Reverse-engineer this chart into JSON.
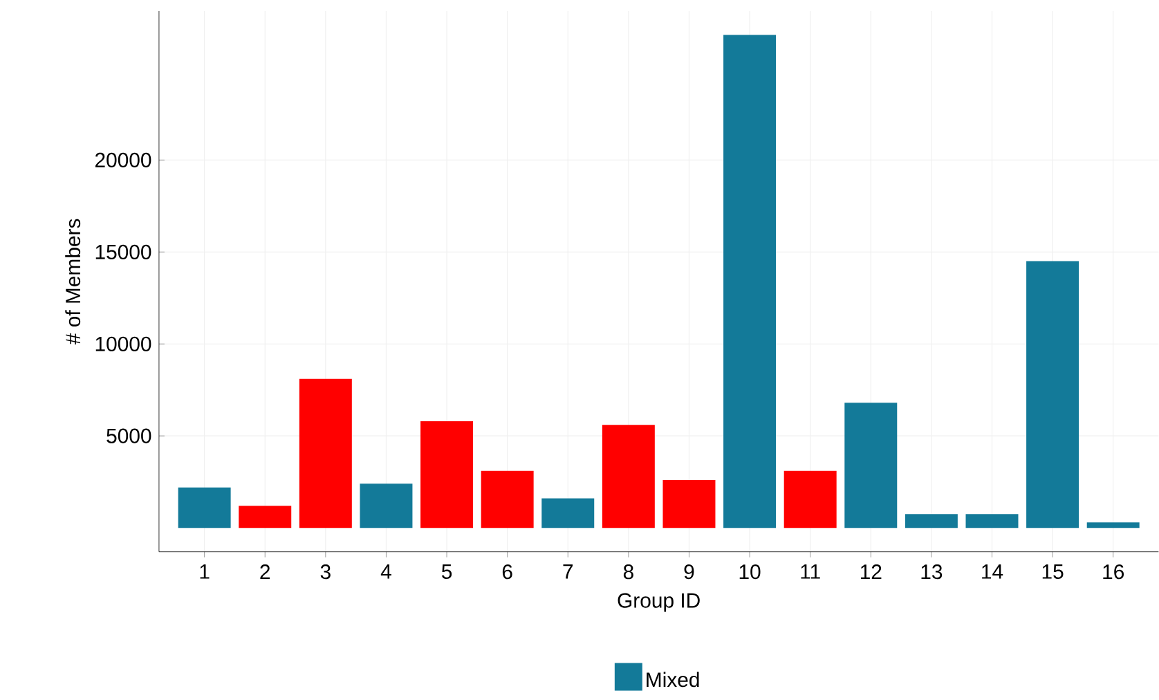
{
  "chart_data": {
    "type": "bar",
    "xlabel": "Group ID",
    "ylabel": "# of Members",
    "categories": [
      "1",
      "2",
      "3",
      "4",
      "5",
      "6",
      "7",
      "8",
      "9",
      "10",
      "11",
      "12",
      "13",
      "14",
      "15",
      "16"
    ],
    "series": [
      {
        "color": "#ff0000",
        "values": [
          null,
          1200,
          8100,
          null,
          5800,
          3100,
          null,
          5600,
          2600,
          null,
          3100,
          null,
          null,
          null,
          null,
          null
        ]
      },
      {
        "name": "Mixed",
        "color": "#137a99",
        "values": [
          2200,
          null,
          null,
          2400,
          null,
          null,
          1600,
          null,
          null,
          26800,
          null,
          6800,
          750,
          750,
          14500,
          300
        ]
      }
    ],
    "ylim": [
      -1300,
      28100
    ],
    "yticks": [
      5000,
      10000,
      15000,
      20000
    ],
    "grid": true,
    "legend": "bottom"
  }
}
